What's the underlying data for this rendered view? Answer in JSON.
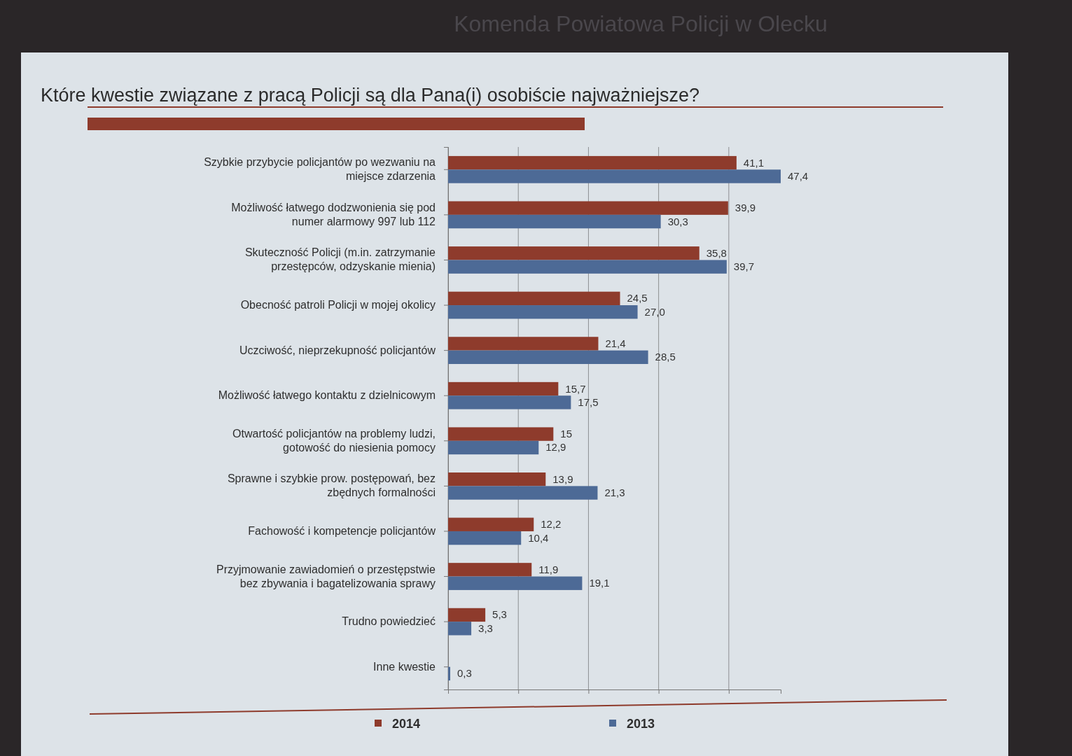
{
  "chart_data": {
    "type": "bar",
    "orientation": "horizontal",
    "subtitle": "Komenda Powiatowa Policji w Olecku",
    "title": "Które kwestie związane z pracą Policji są dla Pana(i) osobiście najważniejsze?",
    "categories": [
      "Szybkie przybycie policjantów po wezwaniu na miejsce zdarzenia",
      "Możliwość łatwego dodzwonienia się pod numer alarmowy 997 lub 112",
      "Skuteczność Policji (m.in. zatrzymanie przestępców, odzyskanie mienia)",
      "Obecność patroli Policji w mojej okolicy",
      "Uczciwość, nieprzekupność policjantów",
      "Możliwość łatwego kontaktu z dzielnicowym",
      "Otwartość policjantów na problemy ludzi, gotowość do niesienia pomocy",
      "Sprawne i szybkie prow. postępowań, bez zbędnych formalności",
      "Fachowość i kompetencje policjantów",
      "Przyjmowanie zawiadomień o przestępstwie bez zbywania i bagatelizowania sprawy",
      "Trudno powiedzieć",
      "Inne kwestie"
    ],
    "series": [
      {
        "name": "2014",
        "color": "#8e3b2c",
        "values": [
          41.1,
          39.9,
          35.8,
          24.5,
          21.4,
          15.7,
          15,
          13.9,
          12.2,
          11.9,
          5.3,
          null
        ],
        "value_labels": [
          "41,1",
          "39,9",
          "35,8",
          "24,5",
          "21,4",
          "15,7",
          "15",
          "13,9",
          "12,2",
          "11,9",
          "5,3",
          null
        ]
      },
      {
        "name": "2013",
        "color": "#4d6a96",
        "values": [
          47.4,
          30.3,
          39.7,
          27.0,
          28.5,
          17.5,
          12.9,
          21.3,
          10.4,
          19.1,
          3.3,
          0.3
        ],
        "value_labels": [
          "47,4",
          "30,3",
          "39,7",
          "27,0",
          "28,5",
          "17,5",
          "12,9",
          "21,3",
          "10,4",
          "19,1",
          "3,3",
          "0,3"
        ]
      }
    ],
    "tick_labels": "y",
    "grid": "x",
    "legend": "bottom"
  }
}
